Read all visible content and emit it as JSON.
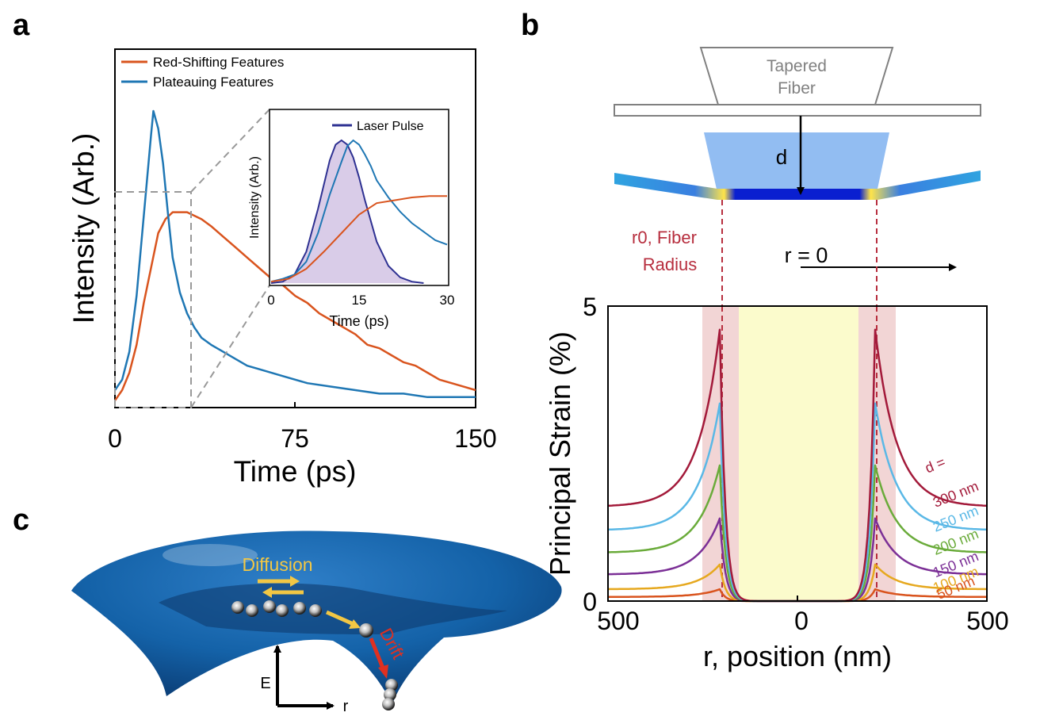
{
  "panels": {
    "a": "a",
    "b": "b",
    "c": "c"
  },
  "chart_data": [
    {
      "id": "panel-a",
      "type": "line",
      "xlabel": "Time (ps)",
      "ylabel": "Intensity (Arb.)",
      "xlim": [
        0,
        150
      ],
      "ylim": [
        0,
        1
      ],
      "xticks": [
        "0",
        "75",
        "150"
      ],
      "legend": "top-left",
      "series": [
        {
          "name": "Red-Shifting Features",
          "color": "#d9541e",
          "x": [
            0,
            3,
            6,
            9,
            12,
            15,
            18,
            21,
            24,
            27,
            30,
            33,
            36,
            40,
            45,
            50,
            55,
            60,
            65,
            70,
            75,
            80,
            85,
            90,
            95,
            100,
            105,
            110,
            115,
            120,
            125,
            130,
            135,
            140,
            145,
            150
          ],
          "y": [
            0.02,
            0.05,
            0.1,
            0.18,
            0.3,
            0.4,
            0.5,
            0.54,
            0.56,
            0.56,
            0.56,
            0.55,
            0.54,
            0.52,
            0.49,
            0.46,
            0.43,
            0.4,
            0.37,
            0.35,
            0.32,
            0.3,
            0.27,
            0.25,
            0.23,
            0.21,
            0.18,
            0.17,
            0.15,
            0.13,
            0.12,
            0.1,
            0.08,
            0.07,
            0.06,
            0.05
          ]
        },
        {
          "name": "Plateauing Features",
          "color": "#1f77b4",
          "x": [
            0,
            3,
            6,
            9,
            12,
            15,
            16,
            18,
            20,
            22,
            24,
            27,
            30,
            33,
            36,
            40,
            45,
            50,
            55,
            60,
            70,
            80,
            90,
            100,
            110,
            120,
            130,
            140,
            150
          ],
          "y": [
            0.05,
            0.08,
            0.16,
            0.32,
            0.55,
            0.78,
            0.85,
            0.8,
            0.7,
            0.56,
            0.43,
            0.33,
            0.27,
            0.23,
            0.2,
            0.18,
            0.16,
            0.14,
            0.12,
            0.11,
            0.09,
            0.07,
            0.06,
            0.05,
            0.04,
            0.04,
            0.03,
            0.03,
            0.03
          ]
        }
      ]
    },
    {
      "id": "panel-a-inset",
      "type": "line",
      "xlabel": "Time (ps)",
      "ylabel": "Intensity (Arb.)",
      "xlim": [
        0,
        30
      ],
      "xticks": [
        "0",
        "15",
        "30"
      ],
      "legend": "top-right",
      "series": [
        {
          "name": "Laser Pulse",
          "color": "#2e3192",
          "fill": "#d9cce8",
          "x": [
            0,
            2,
            4,
            6,
            8,
            10,
            11,
            12,
            13,
            14,
            15,
            16,
            18,
            20,
            22,
            24,
            26
          ],
          "y": [
            0,
            0.01,
            0.06,
            0.22,
            0.52,
            0.86,
            0.97,
            1,
            0.97,
            0.88,
            0.74,
            0.58,
            0.29,
            0.12,
            0.04,
            0.01,
            0
          ]
        },
        {
          "name": "",
          "color": "#1f77b4",
          "x": [
            0,
            2,
            4,
            6,
            8,
            10,
            12,
            13,
            14,
            15,
            16,
            17,
            18,
            20,
            22,
            24,
            26,
            28,
            30
          ],
          "y": [
            0.01,
            0.03,
            0.06,
            0.15,
            0.35,
            0.62,
            0.85,
            0.96,
            1.0,
            0.97,
            0.9,
            0.82,
            0.72,
            0.6,
            0.5,
            0.42,
            0.36,
            0.3,
            0.27
          ]
        },
        {
          "name": "",
          "color": "#d9541e",
          "x": [
            0,
            3,
            6,
            9,
            12,
            15,
            18,
            21,
            24,
            27,
            30
          ],
          "y": [
            0.01,
            0.03,
            0.1,
            0.22,
            0.35,
            0.48,
            0.56,
            0.58,
            0.6,
            0.61,
            0.61
          ]
        }
      ]
    },
    {
      "id": "panel-b",
      "type": "line",
      "xlabel": "r, position (nm)",
      "ylabel": "Principal Strain (%)",
      "xlim": [
        -500,
        500
      ],
      "ylim": [
        0,
        5
      ],
      "xticks": [
        {
          "value": -500,
          "label": "500"
        },
        {
          "value": 0,
          "label": "0"
        },
        {
          "value": 500,
          "label": "500"
        }
      ],
      "yticks": [
        {
          "value": 0,
          "label": "0"
        },
        {
          "value": 5,
          "label": "5"
        }
      ],
      "legend_title": "d =",
      "series": [
        {
          "name": "300 nm",
          "color": "#a31a3a",
          "peak": 4.6,
          "edge": 1.6
        },
        {
          "name": "250 nm",
          "color": "#5ab8e6",
          "peak": 3.35,
          "edge": 1.2
        },
        {
          "name": "200 nm",
          "color": "#6aab3a",
          "peak": 2.3,
          "edge": 0.82
        },
        {
          "name": "150 nm",
          "color": "#7b2f96",
          "peak": 1.4,
          "edge": 0.45
        },
        {
          "name": "100 nm",
          "color": "#e6a81e",
          "peak": 0.62,
          "edge": 0.2
        },
        {
          "name": "50 nm",
          "color": "#d9541e",
          "peak": 0.2,
          "edge": 0.07
        }
      ]
    }
  ],
  "schematic_b": {
    "fiber_label_line1": "Tapered",
    "fiber_label_line2": "Fiber",
    "d_label": "d",
    "r0_label_line1": "r0, Fiber",
    "r0_label_line2": "Radius",
    "r_origin_label": "r = 0"
  },
  "schematic_c": {
    "diffusion_label": "Diffusion",
    "drift_label": "Drift",
    "energy_axis_label": "E",
    "radius_axis_label": "r"
  }
}
